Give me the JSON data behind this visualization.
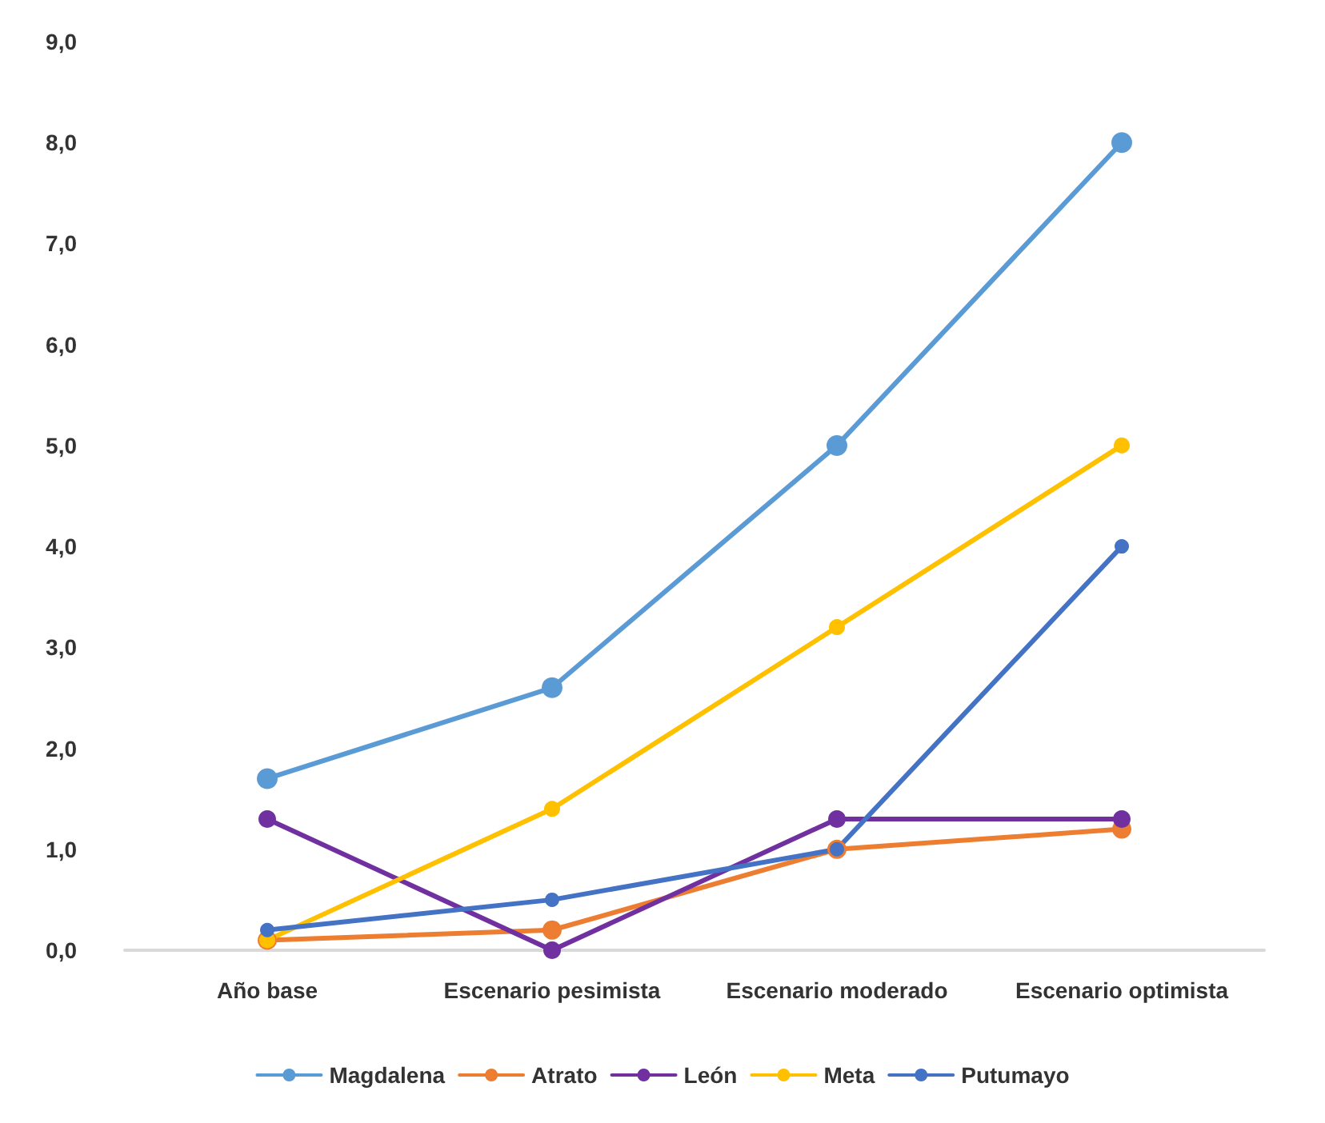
{
  "chart_data": {
    "type": "line",
    "categories": [
      "Año base",
      "Escenario pesimista",
      "Escenario moderado",
      "Escenario optimista"
    ],
    "series": [
      {
        "name": "Magdalena",
        "color": "#5b9bd5",
        "values": [
          1.7,
          2.6,
          5.0,
          8.0
        ]
      },
      {
        "name": "Atrato",
        "color": "#ed7d31",
        "values": [
          0.1,
          0.2,
          1.0,
          1.2
        ]
      },
      {
        "name": "León",
        "color": "#7030a0",
        "values": [
          1.3,
          0.0,
          1.3,
          1.3
        ]
      },
      {
        "name": "Meta",
        "color": "#ffc000",
        "values": [
          0.1,
          1.4,
          3.2,
          5.0
        ]
      },
      {
        "name": "Putumayo",
        "color": "#4472c4",
        "values": [
          0.2,
          0.5,
          1.0,
          4.0
        ]
      }
    ],
    "ylim": [
      0,
      9
    ],
    "yticks": [
      {
        "value": 0,
        "label": "0,0"
      },
      {
        "value": 1,
        "label": "1,0"
      },
      {
        "value": 2,
        "label": "2,0"
      },
      {
        "value": 3,
        "label": "3,0"
      },
      {
        "value": 4,
        "label": "4,0"
      },
      {
        "value": 5,
        "label": "5,0"
      },
      {
        "value": 6,
        "label": "6,0"
      },
      {
        "value": 7,
        "label": "7,0"
      },
      {
        "value": 8,
        "label": "8,0"
      },
      {
        "value": 9,
        "label": "9,0"
      }
    ],
    "grid": false,
    "legend": "bottom",
    "marker": "circle",
    "line_style": "solid"
  }
}
